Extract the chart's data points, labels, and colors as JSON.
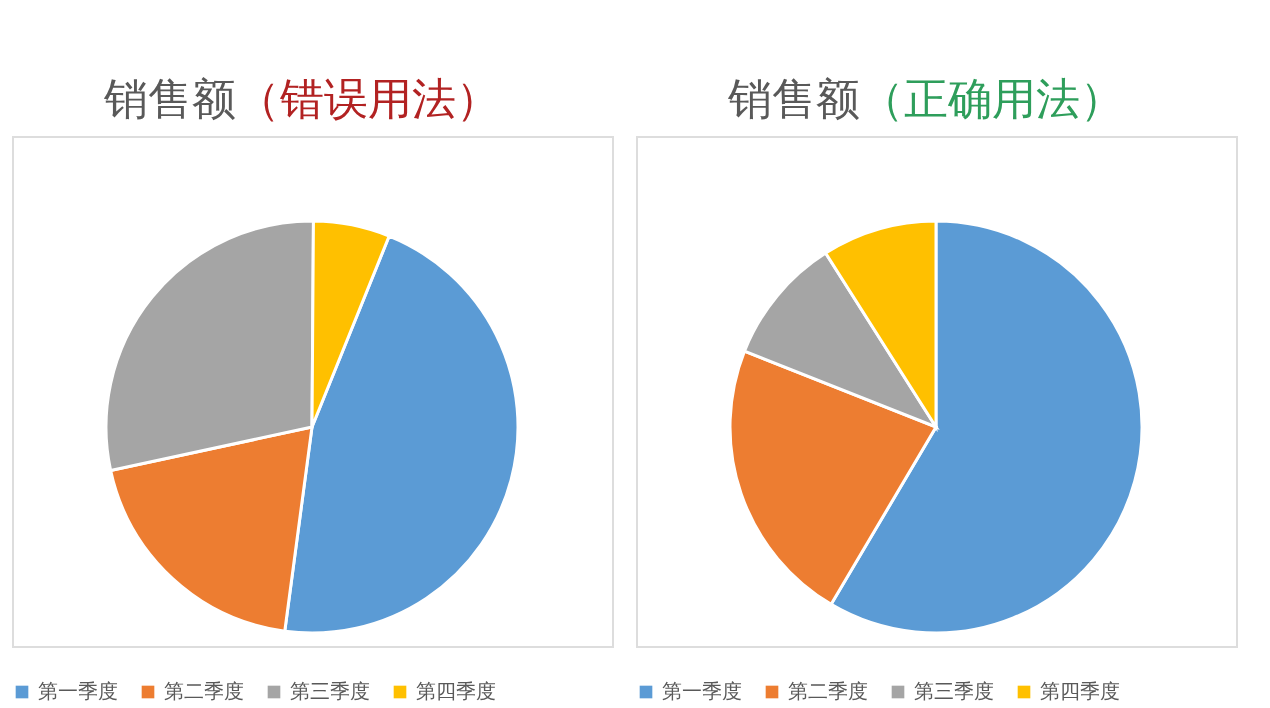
{
  "chart_data": [
    {
      "type": "pie",
      "title": "销售额",
      "subtitle": "（错误用法）",
      "categories": [
        "第一季度",
        "第二季度",
        "第三季度",
        "第四季度"
      ],
      "values": [
        46,
        19.5,
        28.5,
        6
      ],
      "colors": [
        "#5b9bd5",
        "#ed7d31",
        "#a5a5a5",
        "#ffc000"
      ],
      "legend": "bottom"
    },
    {
      "type": "pie",
      "title": "销售额",
      "subtitle": "（正确用法）",
      "categories": [
        "第一季度",
        "第二季度",
        "第三季度",
        "第四季度"
      ],
      "values": [
        58.5,
        22.5,
        10,
        9
      ],
      "colors": [
        "#5b9bd5",
        "#ed7d31",
        "#a5a5a5",
        "#ffc000"
      ],
      "legend": "bottom"
    }
  ]
}
